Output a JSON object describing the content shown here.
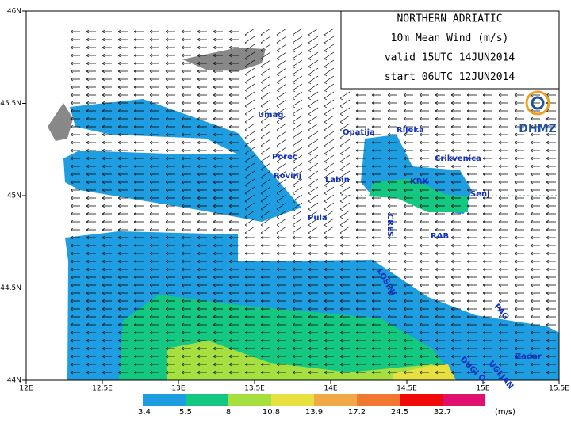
{
  "header": {
    "lines": [
      "NORTHERN ADRIATIC",
      "10m Mean Wind (m/s)",
      "valid 15UTC 14JUN2014",
      "start 06UTC 12JUN2014"
    ],
    "logo": "DHMZ"
  },
  "map": {
    "lon_ticks": [
      "12E",
      "12.5E",
      "13E",
      "13.5E",
      "14E",
      "14.5E",
      "15E",
      "15.5E"
    ],
    "lat_ticks": [
      "44N",
      "44.5N",
      "45N",
      "45.5N",
      "46N"
    ],
    "places": [
      "Umag",
      "Porec",
      "Rovinj",
      "Pula",
      "Labin",
      "Opatija",
      "Rijeka",
      "Crikvenica",
      "KRK",
      "Senj",
      "CRES",
      "RAB",
      "LOSINJ",
      "PAG",
      "DUGI O.",
      "UGLJAN",
      "Zadar"
    ]
  },
  "colorbar": {
    "levels": [
      "3.4",
      "5.5",
      "8",
      "10.8",
      "13.9",
      "17.2",
      "24.5",
      "32.7"
    ],
    "unit": "(m/s)",
    "colors": [
      "#1e9ee0",
      "#14c882",
      "#a5e040",
      "#e6e040",
      "#f0a848",
      "#f07830",
      "#f00a0a",
      "#e0106e"
    ]
  }
}
